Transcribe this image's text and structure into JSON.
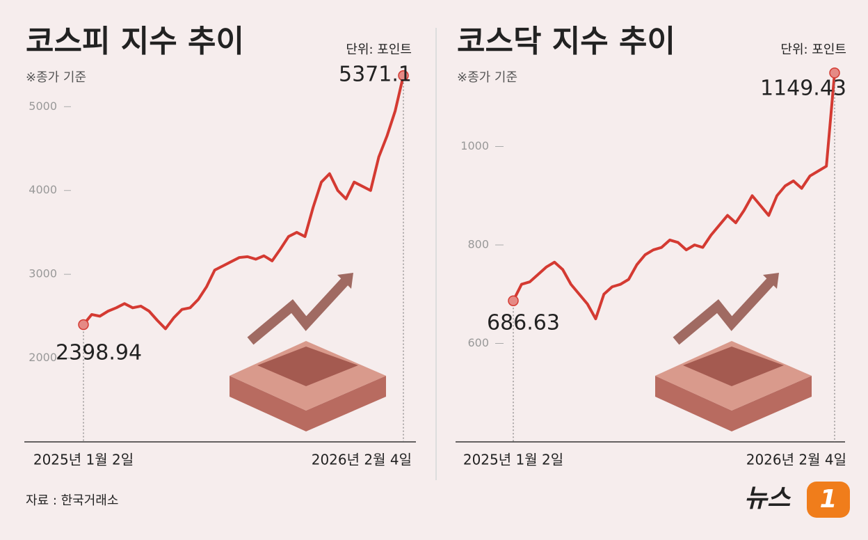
{
  "chart_data": [
    {
      "type": "line",
      "title": "코스피 지수 추이",
      "subtitle": "※종가 기준",
      "unit": "단위: 포인트",
      "color": "#d43a32",
      "categories": [
        "2025년 1월 2일",
        null,
        null,
        null,
        null,
        null,
        null,
        null,
        null,
        null,
        null,
        null,
        null,
        null,
        null,
        null,
        null,
        null,
        null,
        null,
        null,
        null,
        null,
        null,
        null,
        null,
        null,
        null,
        null,
        null,
        null,
        null,
        null,
        null,
        null,
        null,
        null,
        null,
        null,
        "2026년 2월 4일"
      ],
      "values": [
        2398.94,
        2520,
        2500,
        2560,
        2600,
        2650,
        2600,
        2620,
        2560,
        2450,
        2350,
        2480,
        2580,
        2600,
        2700,
        2850,
        3050,
        3100,
        3150,
        3200,
        3210,
        3180,
        3220,
        3160,
        3300,
        3450,
        3500,
        3450,
        3800,
        4100,
        4200,
        4000,
        3900,
        4100,
        4050,
        4000,
        4400,
        4650,
        4950,
        5371.1
      ],
      "ylim": [
        1000,
        5700
      ],
      "yticks": [
        2000,
        3000,
        4000,
        5000
      ]
    },
    {
      "type": "line",
      "title": "코스닥 지수 추이",
      "subtitle": "※종가 기준",
      "unit": "단위: 포인트",
      "color": "#d43a32",
      "categories": [
        "2025년 1월 2일",
        null,
        null,
        null,
        null,
        null,
        null,
        null,
        null,
        null,
        null,
        null,
        null,
        null,
        null,
        null,
        null,
        null,
        null,
        null,
        null,
        null,
        null,
        null,
        null,
        null,
        null,
        null,
        null,
        null,
        null,
        null,
        null,
        null,
        null,
        null,
        null,
        null,
        null,
        "2026년 2월 4일"
      ],
      "values": [
        686.63,
        720,
        725,
        740,
        755,
        765,
        750,
        720,
        700,
        680,
        650,
        700,
        715,
        720,
        730,
        760,
        780,
        790,
        795,
        810,
        805,
        790,
        800,
        795,
        820,
        840,
        860,
        845,
        870,
        900,
        880,
        860,
        900,
        920,
        930,
        915,
        940,
        950,
        960,
        1149.43
      ],
      "ylim": [
        400,
        1200
      ],
      "yticks": [
        600,
        800,
        1000
      ]
    }
  ],
  "source": "자료 : 한국거래소",
  "logo": "뉴스",
  "logo_mark": "1"
}
